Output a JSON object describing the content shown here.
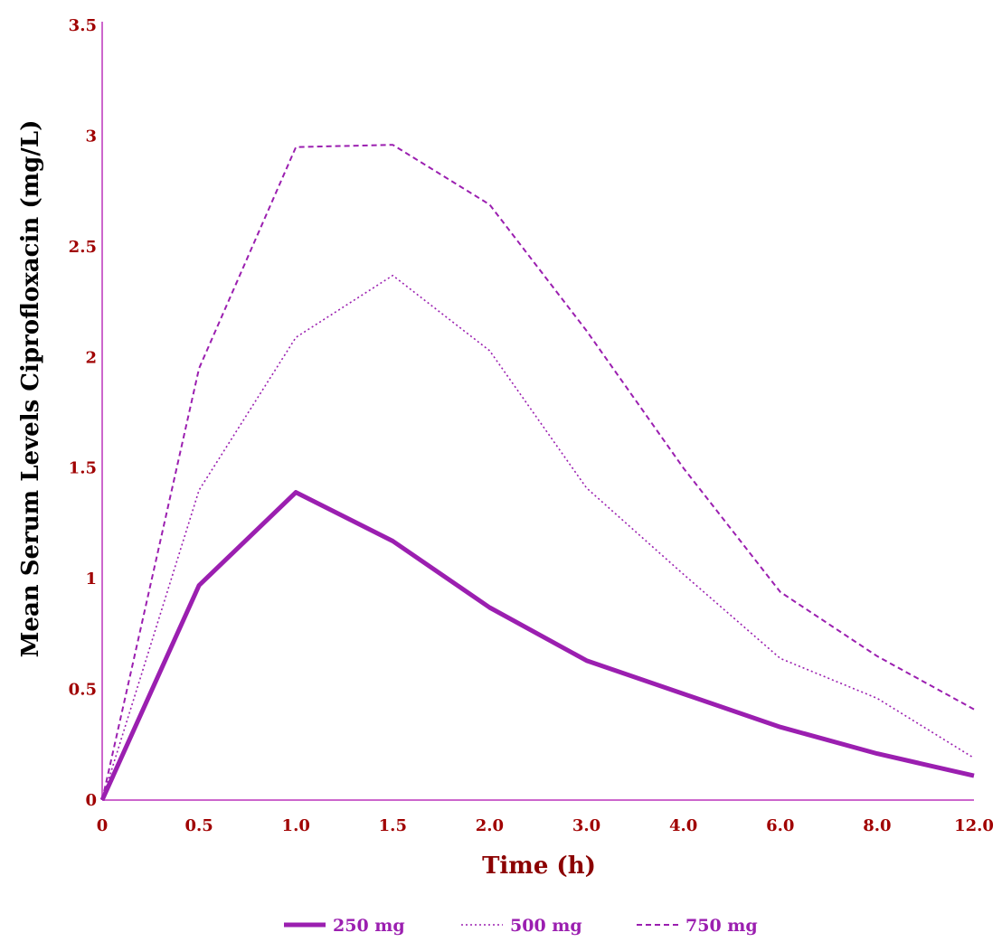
{
  "chart_data": {
    "type": "line",
    "title": "",
    "xlabel": "Time (h)",
    "ylabel": "Mean Serum Levels Ciprofloxacin (mg/L)",
    "categories": [
      "0",
      "0.5",
      "1.0",
      "1.5",
      "2.0",
      "3.0",
      "4.0",
      "6.0",
      "8.0",
      "12.0"
    ],
    "ylim": [
      0,
      3.5
    ],
    "yticks": [
      "0",
      "0.5",
      "1",
      "1.5",
      "2",
      "2.5",
      "3",
      "3.5"
    ],
    "grid": false,
    "legend_position": "bottom",
    "series": [
      {
        "name": "250 mg",
        "values": [
          0,
          0.97,
          1.39,
          1.17,
          0.87,
          0.63,
          0.48,
          0.33,
          0.21,
          0.11
        ]
      },
      {
        "name": "500 mg",
        "values": [
          0,
          1.4,
          2.09,
          2.37,
          2.03,
          1.41,
          1.02,
          0.64,
          0.46,
          0.19
        ]
      },
      {
        "name": "750 mg",
        "values": [
          0,
          1.95,
          2.95,
          2.96,
          2.69,
          2.12,
          1.5,
          0.94,
          0.65,
          0.41
        ]
      }
    ]
  },
  "colors": {
    "axis": "#cc66cc",
    "tick_text": "#a00000",
    "axis_title": "#8b0000",
    "ylabel_text": "#000000",
    "series": "#9b1fb0",
    "legend_text": "#9b1fb0"
  }
}
